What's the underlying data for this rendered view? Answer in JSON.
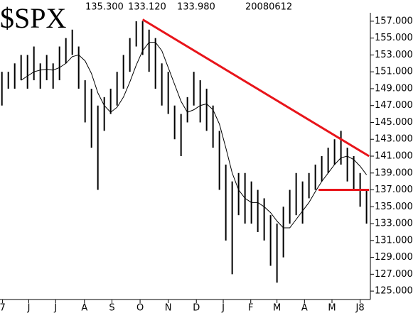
{
  "chart_data": {
    "type": "ohlc",
    "title": "$SPX",
    "header_values": [
      "135.300",
      "133.120",
      "133.980"
    ],
    "date": "20080612",
    "x": [
      0,
      1,
      2,
      3,
      4,
      5,
      6,
      7,
      8,
      9,
      10,
      11,
      12,
      13,
      14,
      15,
      16,
      17,
      18,
      19,
      20,
      21,
      22,
      23,
      24,
      25,
      26,
      27,
      28,
      29,
      30,
      31,
      32,
      33,
      34,
      35,
      36,
      37,
      38,
      39,
      40,
      41,
      42,
      43,
      44,
      45,
      46,
      47,
      48,
      49,
      50,
      51,
      52,
      53,
      54,
      55,
      56,
      57
    ],
    "high": [
      151,
      151,
      152,
      153,
      153,
      154,
      152,
      153,
      152,
      154,
      155,
      156,
      154,
      150,
      149,
      147,
      148,
      149,
      151,
      153,
      155,
      157,
      157,
      156,
      155,
      152,
      151,
      147,
      146,
      148,
      151,
      150,
      149,
      147,
      144,
      140,
      138,
      139,
      139,
      138,
      137,
      136,
      134,
      133,
      135,
      137,
      139,
      138,
      139,
      140,
      141,
      142,
      143,
      144,
      142,
      141,
      139,
      137
    ],
    "low": [
      147,
      149,
      149,
      150,
      149,
      150,
      149,
      150,
      149,
      150,
      152,
      153,
      149,
      145,
      142,
      137,
      144,
      146,
      147,
      149,
      151,
      154,
      153,
      151,
      149,
      147,
      146,
      143,
      141,
      145,
      147,
      145,
      144,
      142,
      137,
      131,
      127,
      134,
      133,
      133,
      132,
      131,
      128,
      126,
      129,
      133,
      134,
      133,
      136,
      137,
      138,
      139,
      140,
      140,
      138,
      137,
      135,
      133
    ],
    "ma": [
      null,
      null,
      null,
      150,
      150.5,
      151,
      151.2,
      151.3,
      151.2,
      151.5,
      152,
      152.8,
      153,
      152.3,
      150.8,
      148.5,
      147,
      146.2,
      146.8,
      148,
      149.8,
      151.8,
      153.5,
      154.5,
      154.5,
      153.5,
      151.5,
      149.5,
      147.5,
      146.2,
      146.5,
      147,
      147.2,
      146.5,
      144.8,
      142,
      139,
      137,
      136,
      135.5,
      135.5,
      135,
      134.3,
      133.3,
      132.5,
      132.5,
      133.5,
      134.5,
      135.5,
      136.8,
      138,
      139,
      140,
      140.8,
      141,
      140.6,
      139.8,
      138.8
    ],
    "bar_color": "#000000",
    "ma_color": "#000000",
    "trend_color": "#e8141a",
    "trendlines": [
      {
        "x": [
          22,
          57.4
        ],
        "y": [
          157.2,
          141
        ]
      },
      {
        "x": [
          49.5,
          57.4
        ],
        "y": [
          137,
          137
        ]
      }
    ],
    "xlim": [
      -0.3,
      57.6
    ],
    "xticks": [
      {
        "value": 0.1,
        "label": "7"
      },
      {
        "value": 4.2,
        "label": "J"
      },
      {
        "value": 8.4,
        "label": "J"
      },
      {
        "value": 12.9,
        "label": "A"
      },
      {
        "value": 17.2,
        "label": "S"
      },
      {
        "value": 21.6,
        "label": "O"
      },
      {
        "value": 26,
        "label": "N"
      },
      {
        "value": 30.4,
        "label": "D"
      },
      {
        "value": 34.6,
        "label": "J"
      },
      {
        "value": 38.9,
        "label": "F"
      },
      {
        "value": 43,
        "label": "M"
      },
      {
        "value": 47.3,
        "label": "A"
      },
      {
        "value": 51.6,
        "label": "M"
      },
      {
        "value": 56,
        "label": "J8"
      }
    ],
    "ylim": [
      124,
      158
    ],
    "yticks": [
      {
        "value": 125,
        "label": "125.000"
      },
      {
        "value": 127,
        "label": "127.000"
      },
      {
        "value": 129,
        "label": "129.000"
      },
      {
        "value": 131,
        "label": "131.000"
      },
      {
        "value": 133,
        "label": "133.000"
      },
      {
        "value": 135,
        "label": "135.000"
      },
      {
        "value": 137,
        "label": "137.000"
      },
      {
        "value": 139,
        "label": "139.000"
      },
      {
        "value": 141,
        "label": "141.000"
      },
      {
        "value": 143,
        "label": "143.000"
      },
      {
        "value": 145,
        "label": "145.000"
      },
      {
        "value": 147,
        "label": "147.000"
      },
      {
        "value": 149,
        "label": "149.000"
      },
      {
        "value": 151,
        "label": "151.000"
      },
      {
        "value": 153,
        "label": "153.000"
      },
      {
        "value": 155,
        "label": "155.000"
      },
      {
        "value": 157,
        "label": "157.000"
      }
    ]
  }
}
